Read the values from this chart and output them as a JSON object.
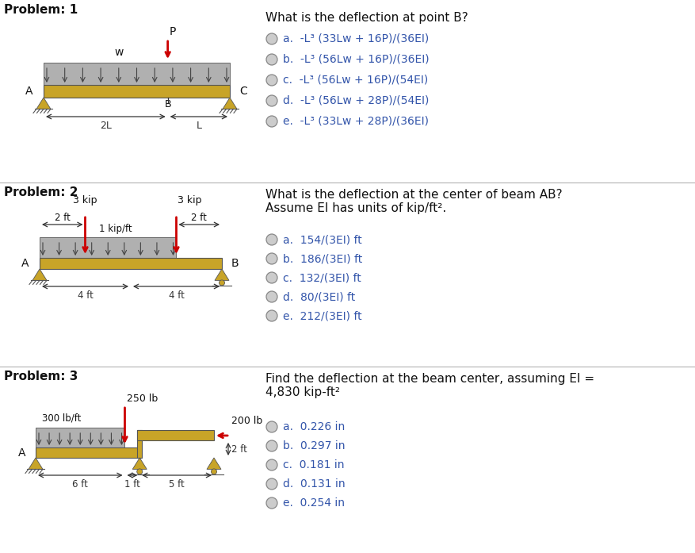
{
  "bg_color": "#ffffff",
  "problems": [
    {
      "title": "Problem: 1",
      "question": "What is the deflection at point B?",
      "choices": [
        "a.  -L³ (33Lw + 16P)/(36EI)",
        "b.  -L³ (56Lw + 16P)/(36EI)",
        "c.  -L³ (56Lw + 16P)/(54EI)",
        "d.  -L³ (56Lw + 28P)/(54EI)",
        "e.  -L³ (33Lw + 28P)/(36EI)"
      ]
    },
    {
      "title": "Problem: 2",
      "question": "What is the deflection at the center of beam AB?\nAssume EI has units of kip/ft².",
      "choices": [
        "a.  154/(3EI) ft",
        "b.  186/(3EI) ft",
        "c.  132/(3EI) ft",
        "d.  80/(3EI) ft",
        "e.  212/(3EI) ft"
      ]
    },
    {
      "title": "Problem: 3",
      "question": "Find the deflection at the beam center, assuming EI =\n4,830 kip-ft²",
      "choices": [
        "a.  0.226 in",
        "b.  0.297 in",
        "c.  0.181 in",
        "d.  0.131 in",
        "e.  0.254 in"
      ]
    }
  ],
  "beam_color": "#c8a428",
  "dist_load_color": "#b0b0b0",
  "dist_load_edge": "#555555",
  "arrow_red": "#cc0000",
  "arrow_gray": "#444444",
  "text_color": "#111111",
  "sep_color": "#bbbbbb",
  "support_color": "#c8a428",
  "radio_fill": "#cccccc",
  "radio_edge": "#888888",
  "choice_color": "#3355aa",
  "dim_color": "#333333"
}
